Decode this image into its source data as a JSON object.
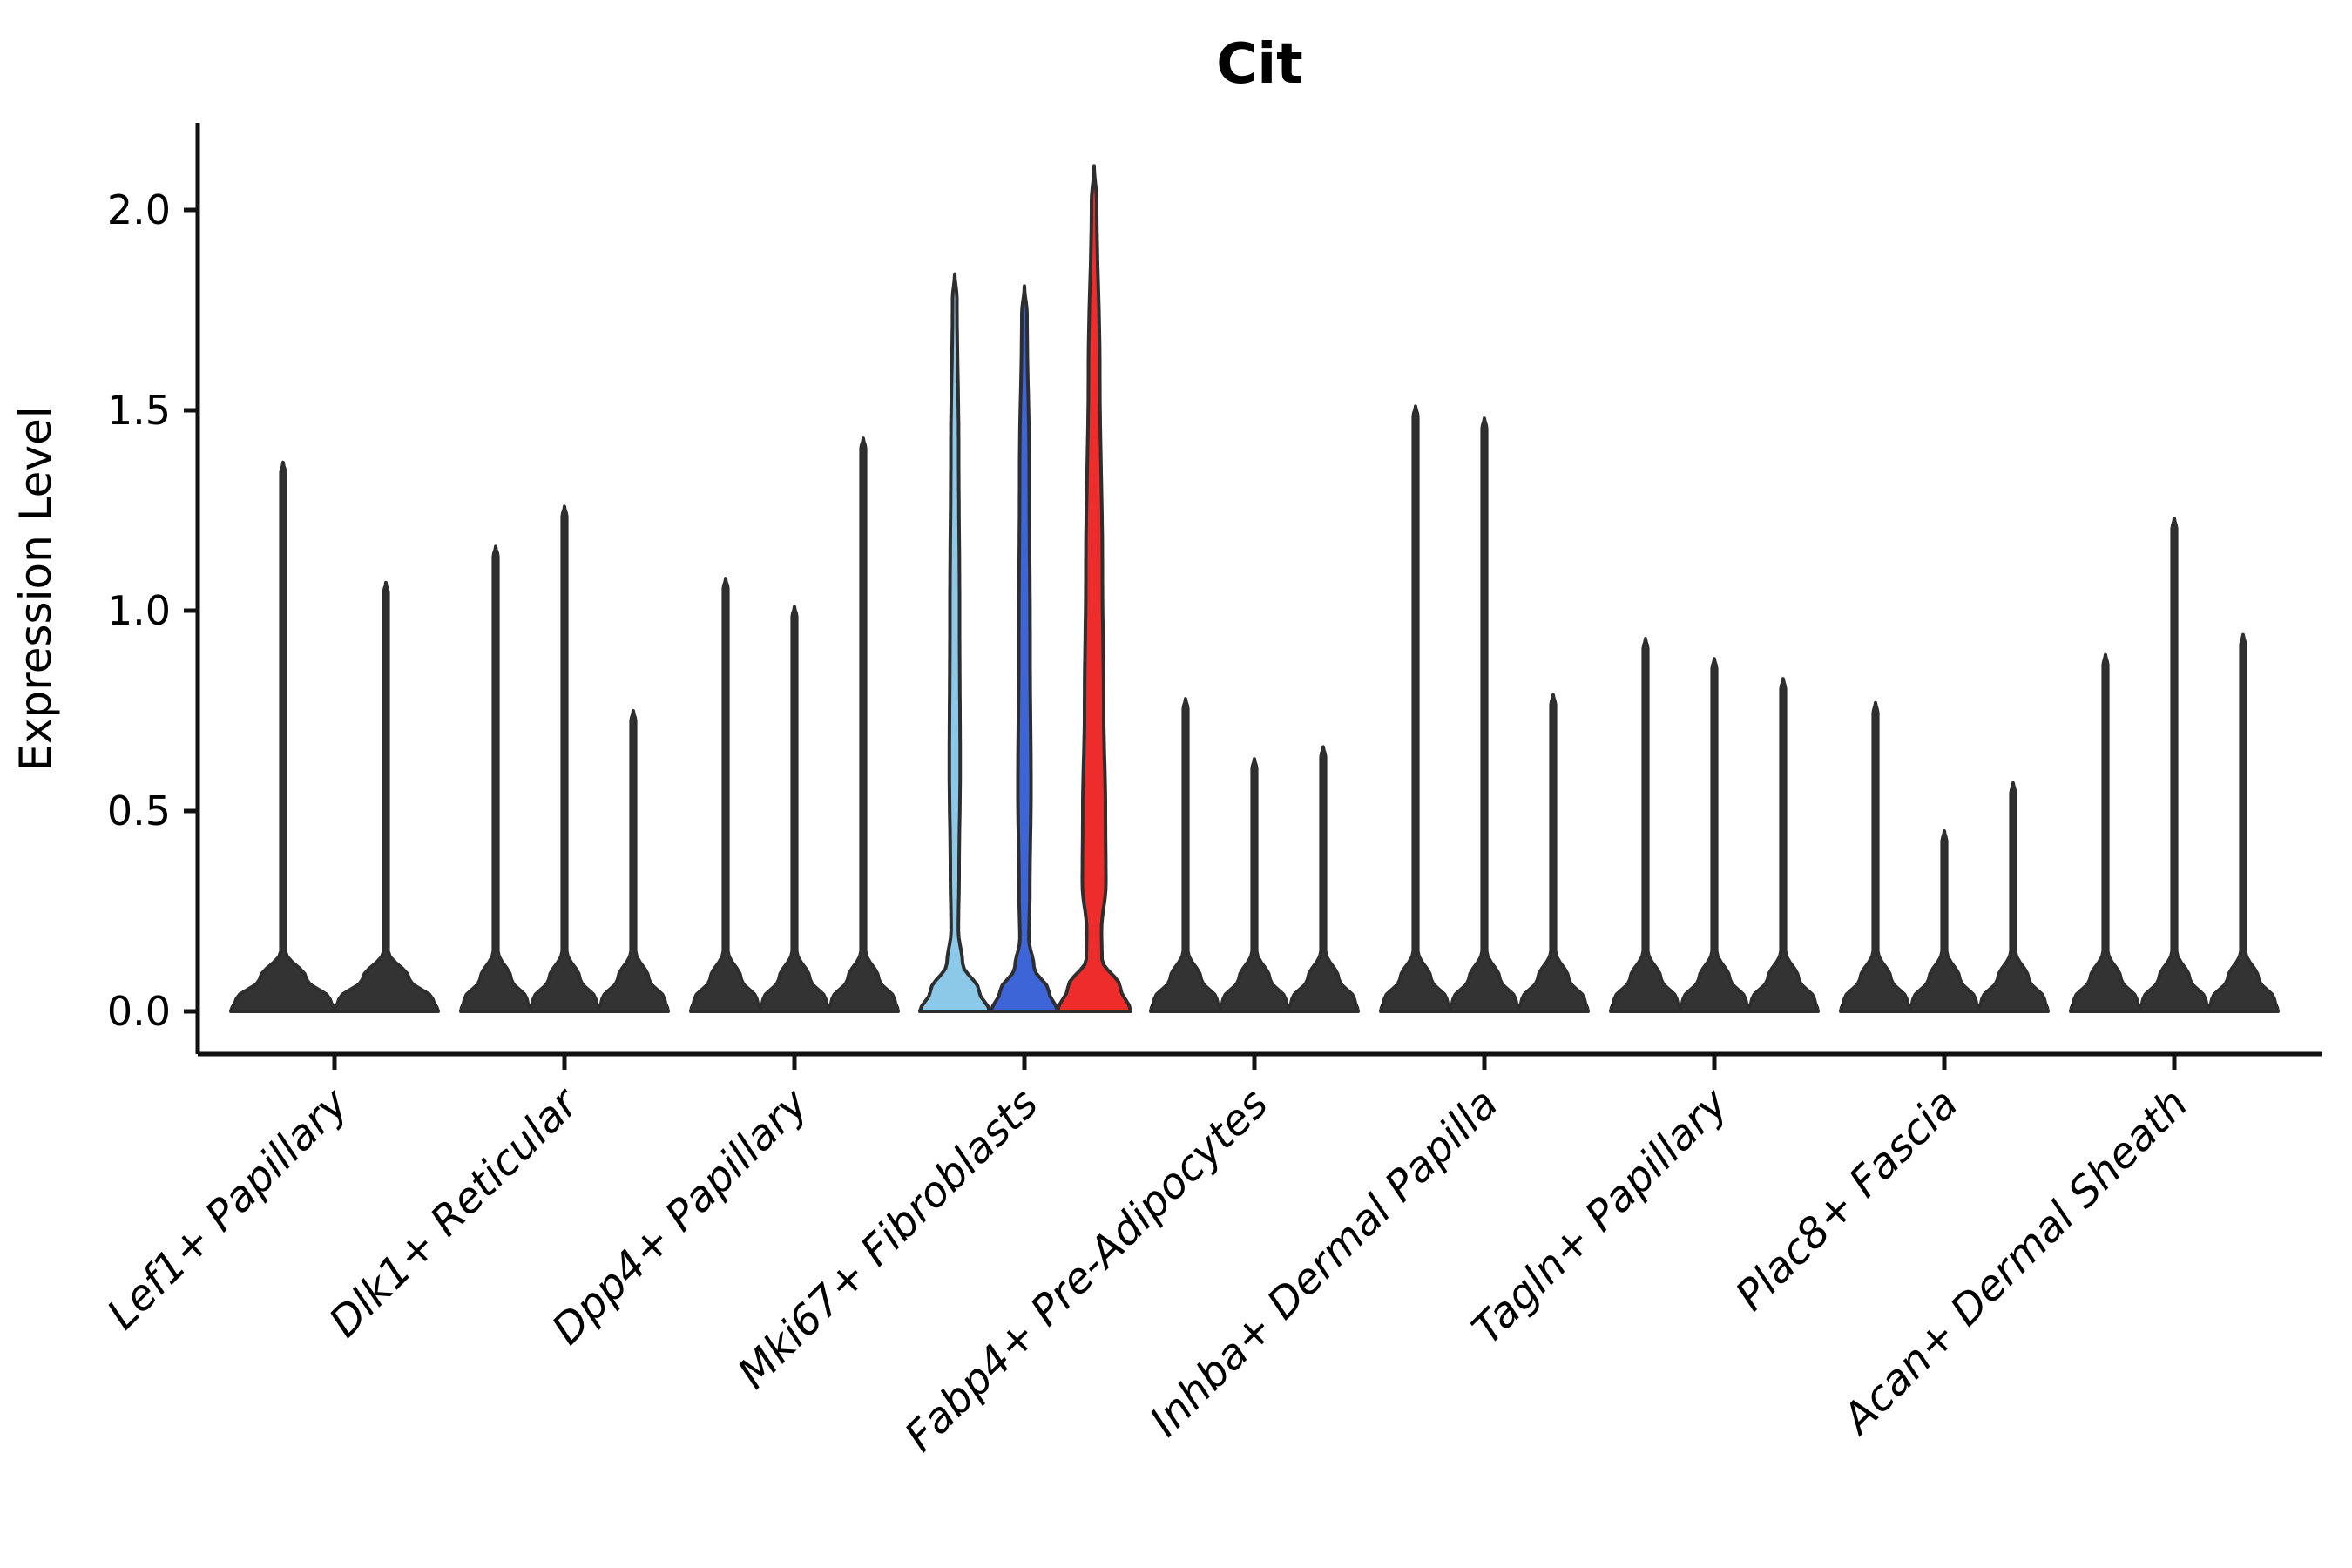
{
  "chart_data": {
    "type": "violin",
    "title": "Cit",
    "ylabel": "Expression Level",
    "xlabel": "",
    "grid": false,
    "legend": "none",
    "ylim": [
      -0.06,
      2.22
    ],
    "ytick_values": [
      0.0,
      0.5,
      1.0,
      1.5,
      2.0
    ],
    "ytick_labels": [
      "0.0",
      "0.5",
      "1.0",
      "1.5",
      "2.0"
    ],
    "categories": [
      "Lef1+ Papillary",
      "Dlk1+ Reticular",
      "Dpp4+ Papillary",
      "Mki67+ Fibroblasts",
      "Fabp4+ Pre-Adipocytes",
      "Inhba+ Dermal Papilla",
      "Tagln+ Papillary",
      "Plac8+ Fascia",
      "Acan+ Dermal Sheath"
    ],
    "colors": {
      "default_violin": "#333333",
      "edge": "#2e2e2e",
      "highlight_light_blue": "#8CC9E9",
      "highlight_dark_blue": "#3D65D8",
      "highlight_red": "#EE2C2C",
      "axis": "#111111"
    },
    "series": [
      {
        "category": "Lef1+ Papillary",
        "violins": [
          {
            "max": 1.37,
            "dx": -59,
            "base": 60,
            "shape": "thin"
          },
          {
            "max": 1.07,
            "dx": 59,
            "base": 60,
            "shape": "thin"
          }
        ]
      },
      {
        "category": "Dlk1+ Reticular",
        "violins": [
          {
            "max": 1.16,
            "dx": -79,
            "base": 40,
            "shape": "thin"
          },
          {
            "max": 1.26,
            "dx": 0,
            "base": 40,
            "shape": "thin"
          },
          {
            "max": 0.75,
            "dx": 79,
            "base": 40,
            "shape": "thin"
          }
        ]
      },
      {
        "category": "Dpp4+ Papillary",
        "violins": [
          {
            "max": 1.08,
            "dx": -79,
            "base": 40,
            "shape": "thin"
          },
          {
            "max": 1.01,
            "dx": 0,
            "base": 40,
            "shape": "thin"
          },
          {
            "max": 1.43,
            "dx": 79,
            "base": 40,
            "shape": "thin"
          }
        ]
      },
      {
        "category": "Mki67+ Fibroblasts",
        "violins": [
          {
            "max": 1.84,
            "dx": -80,
            "base": 40,
            "shape": "body",
            "color": "#8CC9E9",
            "profile": [
              [
                1.84,
                0
              ],
              [
                1.78,
                2.5
              ],
              [
                1.4,
                4.5
              ],
              [
                1.0,
                5.5
              ],
              [
                0.6,
                6.2
              ],
              [
                0.35,
                5.0
              ],
              [
                0.2,
                4.2
              ],
              [
                0.12,
                9
              ],
              [
                0.05,
                28
              ],
              [
                0,
                40
              ]
            ]
          },
          {
            "max": 1.81,
            "dx": 0,
            "base": 38,
            "shape": "body",
            "color": "#3D65D8",
            "profile": [
              [
                1.81,
                0
              ],
              [
                1.74,
                3.0
              ],
              [
                1.35,
                5.5
              ],
              [
                0.9,
                6.5
              ],
              [
                0.55,
                7.5
              ],
              [
                0.3,
                6.2
              ],
              [
                0.18,
                5.2
              ],
              [
                0.11,
                11
              ],
              [
                0.05,
                28
              ],
              [
                0,
                38
              ]
            ]
          },
          {
            "max": 2.11,
            "dx": 80,
            "base": 42,
            "shape": "body",
            "color": "#EE2C2C",
            "profile": [
              [
                2.11,
                0
              ],
              [
                2.02,
                3.0
              ],
              [
                1.6,
                6.5
              ],
              [
                1.1,
                9.5
              ],
              [
                0.75,
                11
              ],
              [
                0.5,
                13
              ],
              [
                0.32,
                13.5
              ],
              [
                0.2,
                8.5
              ],
              [
                0.13,
                9
              ],
              [
                0.06,
                30
              ],
              [
                0,
                42
              ]
            ]
          }
        ]
      },
      {
        "category": "Fabp4+ Pre-Adipocytes",
        "violins": [
          {
            "max": 0.78,
            "dx": -79,
            "base": 40,
            "shape": "thin"
          },
          {
            "max": 0.63,
            "dx": 0,
            "base": 40,
            "shape": "thin"
          },
          {
            "max": 0.66,
            "dx": 79,
            "base": 40,
            "shape": "thin"
          }
        ]
      },
      {
        "category": "Inhba+ Dermal Papilla",
        "violins": [
          {
            "max": 1.51,
            "dx": -79,
            "base": 40,
            "shape": "thin"
          },
          {
            "max": 1.48,
            "dx": 0,
            "base": 40,
            "shape": "thin"
          },
          {
            "max": 0.79,
            "dx": 79,
            "base": 40,
            "shape": "thin"
          }
        ]
      },
      {
        "category": "Tagln+ Papillary",
        "violins": [
          {
            "max": 0.93,
            "dx": -79,
            "base": 40,
            "shape": "thin"
          },
          {
            "max": 0.88,
            "dx": 0,
            "base": 40,
            "shape": "thin"
          },
          {
            "max": 0.83,
            "dx": 79,
            "base": 40,
            "shape": "thin"
          }
        ]
      },
      {
        "category": "Plac8+ Fascia",
        "violins": [
          {
            "max": 0.77,
            "dx": -79,
            "base": 40,
            "shape": "thin"
          },
          {
            "max": 0.45,
            "dx": 0,
            "base": 40,
            "shape": "thin"
          },
          {
            "max": 0.57,
            "dx": 79,
            "base": 40,
            "shape": "thin"
          }
        ]
      },
      {
        "category": "Acan+ Dermal Sheath",
        "violins": [
          {
            "max": 0.89,
            "dx": -79,
            "base": 40,
            "shape": "thin"
          },
          {
            "max": 1.23,
            "dx": 0,
            "base": 40,
            "shape": "thin"
          },
          {
            "max": 0.94,
            "dx": 79,
            "base": 40,
            "shape": "thin"
          }
        ]
      }
    ]
  }
}
